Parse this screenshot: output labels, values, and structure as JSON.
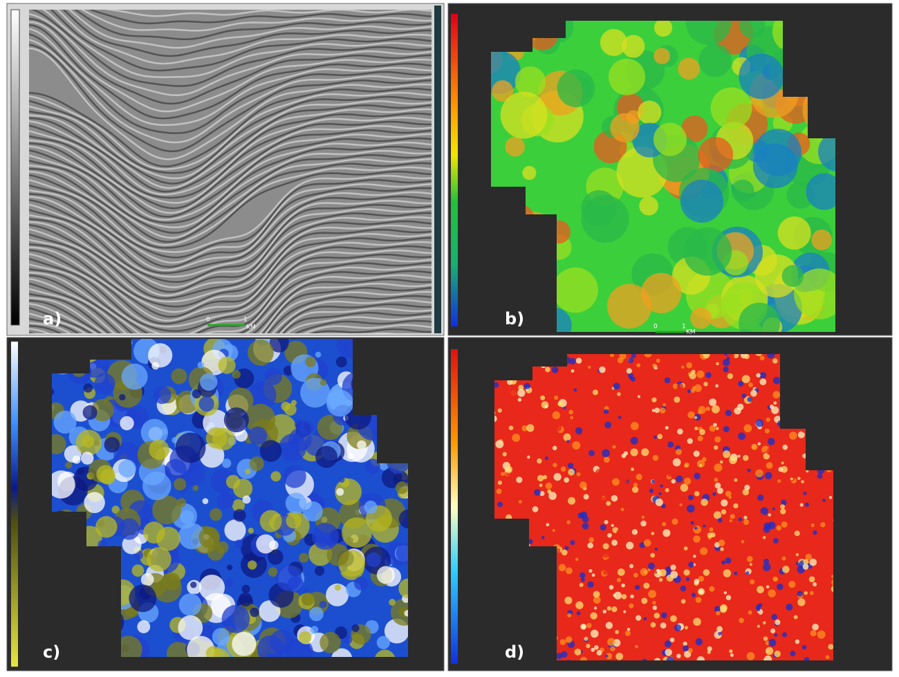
{
  "panels": [
    {
      "label": "a)",
      "scale_bar": {
        "start": "0",
        "end": "1",
        "unit": "KM"
      }
    },
    {
      "label": "b)",
      "scale_bar": {
        "start": "0",
        "end": "1",
        "unit": "KM"
      }
    },
    {
      "label": "c)"
    },
    {
      "label": "d)"
    }
  ]
}
